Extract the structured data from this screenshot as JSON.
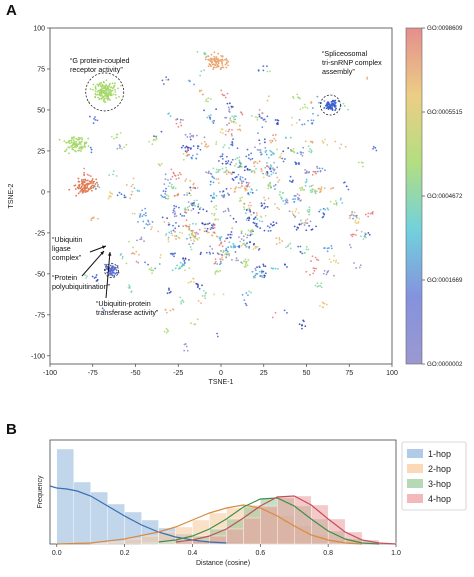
{
  "chart_data": [
    {
      "panel": "A",
      "type": "scatter",
      "xlabel": "TSNE-1",
      "ylabel": "TSNE-2",
      "xlim": [
        -100,
        100
      ],
      "ylim": [
        -105,
        100
      ],
      "xticks": [
        -100,
        -75,
        -50,
        -25,
        0,
        25,
        50,
        75,
        100
      ],
      "yticks": [
        -100,
        -75,
        -50,
        -25,
        0,
        25,
        50,
        75,
        100
      ],
      "colorbar": {
        "ticks": [
          "GO:0098609",
          "GO:0005515",
          "GO:0004672",
          "GO:0001669",
          "GO:0000002"
        ],
        "colormap": "rainbow",
        "colors": [
          "#e07a7a",
          "#e9c56f",
          "#a6d86a",
          "#58c9d6",
          "#6f7fd8",
          "#8a86c8"
        ]
      },
      "annotations": [
        {
          "lines": [
            "“G protein-coupled",
            "receptor activity”"
          ],
          "x": -68,
          "y": 61
        },
        {
          "lines": [
            "“Spliceosomal",
            "tri-snRNP complex",
            "assembly”"
          ],
          "x": 64,
          "y": 53
        },
        {
          "lines": [
            "“Ubiquitin",
            "ligase",
            "complex”"
          ],
          "x": -64,
          "y": -48
        },
        {
          "lines": [
            "“Protein",
            "polyubiquitination”"
          ],
          "x": -64,
          "y": -48
        },
        {
          "lines": [
            "“Ubiquitin-protein",
            "transferase activity”"
          ],
          "x": -64,
          "y": -48
        }
      ],
      "highlighted_clusters": [
        {
          "label": "G protein-coupled receptor activity",
          "x": -68,
          "y": 61,
          "color": "#a6d86a"
        },
        {
          "label": "Spliceosomal tri-snRNP complex assembly",
          "x": 64,
          "y": 53,
          "color": "#3a5fd0"
        },
        {
          "label": "Ubiquitin cluster",
          "x": -64,
          "y": -48,
          "color": "#5a6fd0"
        }
      ],
      "notable_clusters": [
        {
          "x": -80,
          "y": 4,
          "color": "#e07a50"
        },
        {
          "x": -3,
          "y": 79,
          "color": "#e9a66f"
        },
        {
          "x": -85,
          "y": 29,
          "color": "#a6d86a"
        }
      ]
    },
    {
      "panel": "B",
      "type": "area",
      "xlabel": "Distance (cosine)",
      "ylabel": "Frequency",
      "xlim": [
        -0.02,
        1.0
      ],
      "xticks": [
        0.0,
        0.2,
        0.4,
        0.6,
        0.8,
        1.0
      ],
      "legend_position": "right",
      "bin_edges": [
        0.0,
        0.05,
        0.1,
        0.15,
        0.2,
        0.25,
        0.3,
        0.35,
        0.4,
        0.45,
        0.5,
        0.55,
        0.6,
        0.65,
        0.7,
        0.75,
        0.8,
        0.85,
        0.9,
        0.95,
        1.0
      ],
      "series": [
        {
          "name": "1-hop",
          "color": "#8fb5da",
          "hist": [
            0.95,
            0.62,
            0.52,
            0.4,
            0.32,
            0.24,
            0.16,
            0.1,
            0.05,
            0.03,
            0.02,
            0.01,
            0.0,
            0.0,
            0.0,
            0.0,
            0.0,
            0.0,
            0.0,
            0.0
          ],
          "kde_x": [
            -0.02,
            0.0,
            0.03,
            0.06,
            0.1,
            0.15,
            0.2,
            0.25,
            0.3,
            0.35,
            0.4,
            0.45,
            0.5
          ],
          "kde_y": [
            0.58,
            0.56,
            0.55,
            0.53,
            0.48,
            0.38,
            0.28,
            0.19,
            0.12,
            0.07,
            0.04,
            0.02,
            0.01
          ]
        },
        {
          "name": "2-hop",
          "color": "#f8c79a",
          "hist": [
            0.0,
            0.0,
            0.01,
            0.02,
            0.05,
            0.08,
            0.12,
            0.17,
            0.24,
            0.31,
            0.36,
            0.39,
            0.36,
            0.28,
            0.18,
            0.09,
            0.04,
            0.01,
            0.0,
            0.0
          ],
          "kde_x": [
            0.0,
            0.1,
            0.2,
            0.3,
            0.35,
            0.4,
            0.45,
            0.5,
            0.55,
            0.6,
            0.65,
            0.7,
            0.75,
            0.8,
            0.85,
            0.9
          ],
          "kde_y": [
            0.0,
            0.01,
            0.05,
            0.12,
            0.17,
            0.24,
            0.31,
            0.36,
            0.39,
            0.36,
            0.28,
            0.18,
            0.09,
            0.04,
            0.01,
            0.0
          ]
        },
        {
          "name": "3-hop",
          "color": "#95c796",
          "hist": [
            0.0,
            0.0,
            0.0,
            0.0,
            0.0,
            0.01,
            0.02,
            0.04,
            0.08,
            0.15,
            0.25,
            0.37,
            0.45,
            0.46,
            0.38,
            0.25,
            0.13,
            0.05,
            0.01,
            0.0
          ],
          "kde_x": [
            0.3,
            0.35,
            0.4,
            0.45,
            0.5,
            0.55,
            0.6,
            0.65,
            0.7,
            0.75,
            0.8,
            0.85,
            0.9,
            0.95
          ],
          "kde_y": [
            0.02,
            0.04,
            0.08,
            0.15,
            0.25,
            0.37,
            0.45,
            0.46,
            0.38,
            0.25,
            0.13,
            0.05,
            0.01,
            0.0
          ]
        },
        {
          "name": "4-hop",
          "color": "#ec9a9e",
          "hist": [
            0.0,
            0.0,
            0.0,
            0.0,
            0.0,
            0.0,
            0.01,
            0.02,
            0.04,
            0.08,
            0.15,
            0.26,
            0.38,
            0.47,
            0.48,
            0.39,
            0.25,
            0.12,
            0.04,
            0.01
          ],
          "kde_x": [
            0.35,
            0.4,
            0.45,
            0.5,
            0.55,
            0.6,
            0.65,
            0.7,
            0.75,
            0.8,
            0.85,
            0.9,
            0.95,
            1.0
          ],
          "kde_y": [
            0.02,
            0.04,
            0.08,
            0.15,
            0.26,
            0.38,
            0.47,
            0.48,
            0.39,
            0.25,
            0.12,
            0.04,
            0.01,
            0.0
          ]
        }
      ]
    }
  ]
}
